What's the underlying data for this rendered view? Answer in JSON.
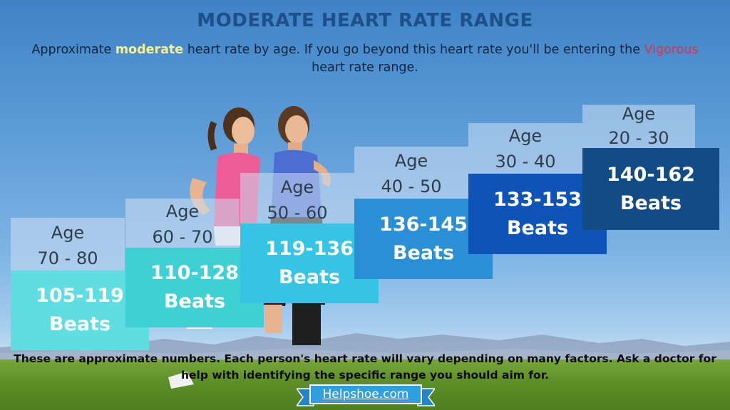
{
  "title": "MODERATE HEART RATE RANGE",
  "subtitle": {
    "part1": "Approximate ",
    "moderate": "moderate",
    "part2": " heart rate by age. If you go beyond this heart rate you'll be entering the ",
    "vigorous": "Vigorous",
    "part3": " heart rate range."
  },
  "steps": [
    {
      "age_label": "Age",
      "age_range": "70 - 80",
      "range": "105-119",
      "unit": "Beats",
      "color": "#5fdde0"
    },
    {
      "age_label": "Age",
      "age_range": "60 - 70",
      "range": "110-128",
      "unit": "Beats",
      "color": "#3fd0d3"
    },
    {
      "age_label": "Age",
      "age_range": "50 - 60",
      "range": "119-136",
      "unit": "Beats",
      "color": "#35c3e6"
    },
    {
      "age_label": "Age",
      "age_range": "40 - 50",
      "range": "136-145",
      "unit": "Beats",
      "color": "#2b8fd6"
    },
    {
      "age_label": "Age",
      "age_range": "30 - 40",
      "range": "133-153",
      "unit": "Beats",
      "color": "#0f52b8"
    },
    {
      "age_label": "Age",
      "age_range": "20 - 30",
      "range": "140-162",
      "unit": "Beats",
      "color": "#134c85"
    }
  ],
  "note": "These are approximate numbers. Each person's heart rate will vary depending on many factors. Ask a doctor for help with identifying the specific range you should aim for.",
  "footer": {
    "link": "Helpshoe.com"
  },
  "colors": {
    "title": "#1d4f8c",
    "moderate": "#f6f28c",
    "vigorous": "#d9334a"
  }
}
